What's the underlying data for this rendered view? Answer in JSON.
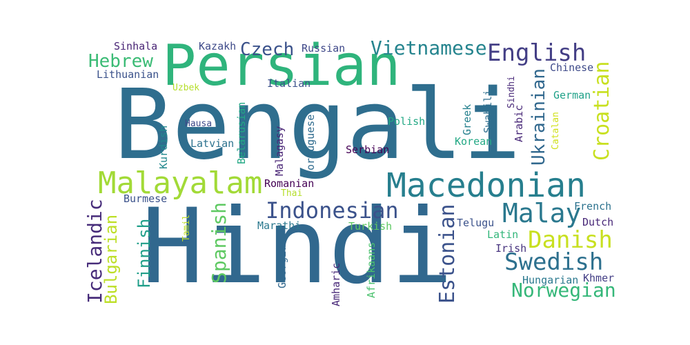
{
  "words": [
    {
      "text": "Bengali",
      "color": "#2f6e8e"
    },
    {
      "text": "Hindi",
      "color": "#31688e"
    },
    {
      "text": "Persian",
      "color": "#2fb47c"
    },
    {
      "text": "Macedonian",
      "color": "#277f8e"
    },
    {
      "text": "Malayalam",
      "color": "#a2da37"
    },
    {
      "text": "English",
      "color": "#433e85"
    },
    {
      "text": "Vietnamese",
      "color": "#25848e"
    },
    {
      "text": "Indonesian",
      "color": "#3b528b"
    },
    {
      "text": "Swedish",
      "color": "#2d708e"
    },
    {
      "text": "Danish",
      "color": "#c8e020"
    },
    {
      "text": "Malay",
      "color": "#2a788e"
    },
    {
      "text": "Norwegian",
      "color": "#35b779"
    },
    {
      "text": "Croatian",
      "color": "#c8e020"
    },
    {
      "text": "Ukrainian",
      "color": "#31688e"
    },
    {
      "text": "Estonian",
      "color": "#3b528b"
    },
    {
      "text": "Spanish",
      "color": "#5ec962"
    },
    {
      "text": "Icelandic",
      "color": "#472c7a"
    },
    {
      "text": "Bulgarian",
      "color": "#bddf26"
    },
    {
      "text": "Finnish",
      "color": "#1f9e89"
    },
    {
      "text": "Czech",
      "color": "#3b528b"
    },
    {
      "text": "Hebrew",
      "color": "#3bbb75"
    },
    {
      "text": "Sinhala",
      "color": "#482475"
    },
    {
      "text": "Kazakh",
      "color": "#3e4a89"
    },
    {
      "text": "Russian",
      "color": "#3f4889"
    },
    {
      "text": "Lithuanian",
      "color": "#3b528b"
    },
    {
      "text": "Uzbek",
      "color": "#b5de2b"
    },
    {
      "text": "Italian",
      "color": "#3b528b"
    },
    {
      "text": "Chinese",
      "color": "#3e4a89"
    },
    {
      "text": "German",
      "color": "#1fa188"
    },
    {
      "text": "Sindhi",
      "color": "#482878"
    },
    {
      "text": "Swahili",
      "color": "#2e6e8e"
    },
    {
      "text": "Greek",
      "color": "#26818e"
    },
    {
      "text": "Arabic",
      "color": "#482878"
    },
    {
      "text": "Catalan",
      "color": "#d0e11c"
    },
    {
      "text": "Korean",
      "color": "#22a884"
    },
    {
      "text": "Hausa",
      "color": "#3e4989"
    },
    {
      "text": "Kurdish",
      "color": "#23898e"
    },
    {
      "text": "Latvian",
      "color": "#2c728e"
    },
    {
      "text": "Belarusian",
      "color": "#22a884"
    },
    {
      "text": "Malagasy",
      "color": "#482475"
    },
    {
      "text": "Portuguese",
      "color": "#2f6b8e"
    },
    {
      "text": "Polish",
      "color": "#22a884"
    },
    {
      "text": "Serbian",
      "color": "#440154"
    },
    {
      "text": "Romanian",
      "color": "#440154"
    },
    {
      "text": "Thai",
      "color": "#b5de2b"
    },
    {
      "text": "Burmese",
      "color": "#3b528b"
    },
    {
      "text": "Tamil",
      "color": "#c0df25"
    },
    {
      "text": "Marathi",
      "color": "#2a788e"
    },
    {
      "text": "Turkish",
      "color": "#5ec962"
    },
    {
      "text": "Georgian",
      "color": "#31688e"
    },
    {
      "text": "Amharic",
      "color": "#482878"
    },
    {
      "text": "Afrikaans",
      "color": "#4ac16d"
    },
    {
      "text": "Telugu",
      "color": "#3b528b"
    },
    {
      "text": "Latin",
      "color": "#32b67a"
    },
    {
      "text": "Irish",
      "color": "#46327e"
    },
    {
      "text": "French",
      "color": "#2c728e"
    },
    {
      "text": "Dutch",
      "color": "#482878"
    },
    {
      "text": "Hungarian",
      "color": "#2a788e"
    },
    {
      "text": "Khmer",
      "color": "#433e85"
    }
  ]
}
